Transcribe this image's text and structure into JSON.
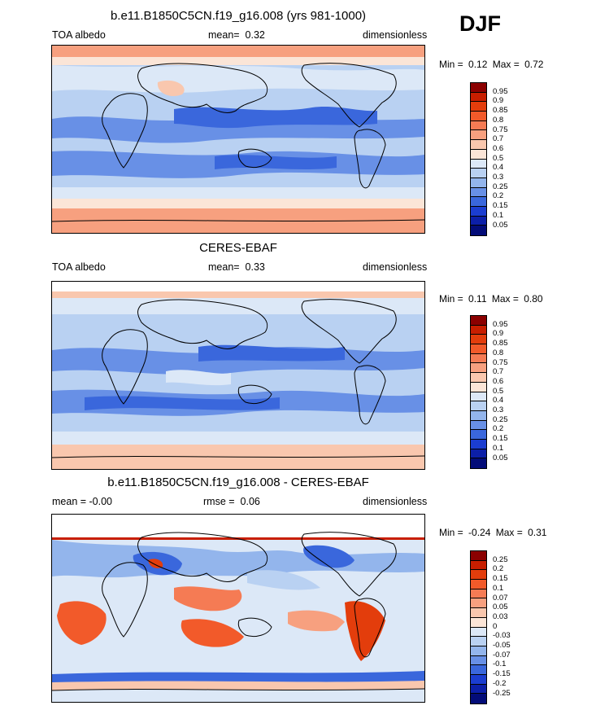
{
  "season": "DJF",
  "panels": [
    {
      "title": "b.e11.B1850C5CN.f19_g16.008 (yrs 981-1000)",
      "left_label": "TOA albedo",
      "center_label": "mean=",
      "center_value": "0.32",
      "right_label": "dimensionless",
      "min_label": "Min =",
      "min_value": "0.12",
      "max_label": "Max =",
      "max_value": "0.72",
      "colorbar": {
        "ticks": [
          "0.95",
          "0.9",
          "0.85",
          "0.8",
          "0.75",
          "0.7",
          "0.6",
          "0.5",
          "0.4",
          "0.3",
          "0.25",
          "0.2",
          "0.15",
          "0.1",
          "0.05"
        ],
        "colors": [
          "#8b0000",
          "#c81e00",
          "#e33d0c",
          "#f25a2a",
          "#f57b54",
          "#f7a07f",
          "#f9c7ae",
          "#fbe5d7",
          "#dce8f7",
          "#b9d1f2",
          "#93b5ec",
          "#6890e6",
          "#3a67dc",
          "#1b3dd0",
          "#0c1fa8",
          "#030c78"
        ]
      }
    },
    {
      "title": "CERES-EBAF",
      "left_label": "TOA albedo",
      "center_label": "mean=",
      "center_value": "0.33",
      "right_label": "dimensionless",
      "min_label": "Min =",
      "min_value": "0.11",
      "max_label": "Max =",
      "max_value": "0.80",
      "colorbar": {
        "ticks": [
          "0.95",
          "0.9",
          "0.85",
          "0.8",
          "0.75",
          "0.7",
          "0.6",
          "0.5",
          "0.4",
          "0.3",
          "0.25",
          "0.2",
          "0.15",
          "0.1",
          "0.05"
        ],
        "colors": [
          "#8b0000",
          "#c81e00",
          "#e33d0c",
          "#f25a2a",
          "#f57b54",
          "#f7a07f",
          "#f9c7ae",
          "#fbe5d7",
          "#dce8f7",
          "#b9d1f2",
          "#93b5ec",
          "#6890e6",
          "#3a67dc",
          "#1b3dd0",
          "#0c1fa8",
          "#030c78"
        ]
      }
    },
    {
      "title": "b.e11.B1850C5CN.f19_g16.008 - CERES-EBAF",
      "left_label": "mean =  -0.00",
      "center_label": "rmse =",
      "center_value": "0.06",
      "right_label": "dimensionless",
      "min_label": "Min =",
      "min_value": "-0.24",
      "max_label": "Max =",
      "max_value": "0.31",
      "colorbar": {
        "ticks": [
          "0.25",
          "0.2",
          "0.15",
          "0.1",
          "0.07",
          "0.05",
          "0.03",
          "0",
          "-0.03",
          "-0.05",
          "-0.07",
          "-0.1",
          "-0.15",
          "-0.2",
          "-0.25"
        ],
        "colors": [
          "#8b0000",
          "#c81e00",
          "#e33d0c",
          "#f25a2a",
          "#f57b54",
          "#f7a07f",
          "#f9c7ae",
          "#fbe5d7",
          "#dce8f7",
          "#b9d1f2",
          "#93b5ec",
          "#6890e6",
          "#3a67dc",
          "#1b3dd0",
          "#0c1fa8",
          "#030c78"
        ]
      }
    }
  ]
}
